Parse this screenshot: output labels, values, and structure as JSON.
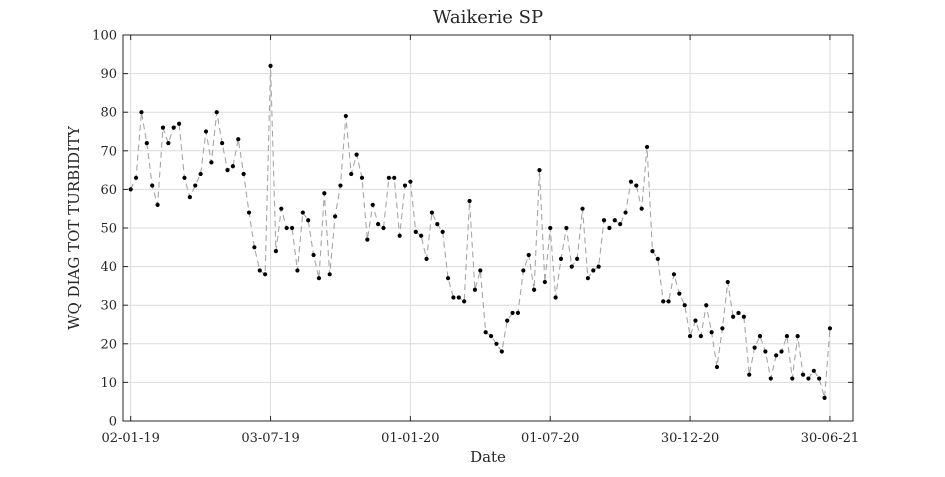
{
  "chart_data": {
    "type": "line",
    "title": "Waikerie SP",
    "xlabel": "Date",
    "ylabel": "WQ DIAG TOT TURBIDITY",
    "ylim": [
      0,
      100
    ],
    "yticks": [
      0,
      10,
      20,
      30,
      40,
      50,
      60,
      70,
      80,
      90,
      100
    ],
    "xlim": [
      "2018-12-23",
      "2021-07-30"
    ],
    "xticks": [
      {
        "date": "2019-01-02",
        "label": "02-01-19"
      },
      {
        "date": "2019-07-03",
        "label": "03-07-19"
      },
      {
        "date": "2020-01-01",
        "label": "01-01-20"
      },
      {
        "date": "2020-07-01",
        "label": "01-07-20"
      },
      {
        "date": "2020-12-30",
        "label": "30-12-20"
      },
      {
        "date": "2021-06-30",
        "label": "30-06-21"
      }
    ],
    "grid": true,
    "line_style": "dashed",
    "colors": {
      "line": "#a6a6a6",
      "marker": "#000000",
      "grid": "#dcdcdc",
      "axis": "#262626"
    },
    "series": [
      {
        "x": [
          "2019-01-02",
          "2019-01-09",
          "2019-01-16",
          "2019-01-23",
          "2019-01-30",
          "2019-02-06",
          "2019-02-13",
          "2019-02-20",
          "2019-02-27",
          "2019-03-06",
          "2019-03-13",
          "2019-03-20",
          "2019-03-27",
          "2019-04-03",
          "2019-04-10",
          "2019-04-17",
          "2019-04-24",
          "2019-05-01",
          "2019-05-08",
          "2019-05-15",
          "2019-05-22",
          "2019-05-29",
          "2019-06-05",
          "2019-06-12",
          "2019-06-19",
          "2019-06-26",
          "2019-07-03",
          "2019-07-10",
          "2019-07-17",
          "2019-07-24",
          "2019-07-31",
          "2019-08-07",
          "2019-08-14",
          "2019-08-21",
          "2019-08-28",
          "2019-09-04",
          "2019-09-11",
          "2019-09-18",
          "2019-09-25",
          "2019-10-02",
          "2019-10-09",
          "2019-10-16",
          "2019-10-23",
          "2019-10-30",
          "2019-11-06",
          "2019-11-13",
          "2019-11-20",
          "2019-11-27",
          "2019-12-04",
          "2019-12-11",
          "2019-12-18",
          "2019-12-25",
          "2020-01-01",
          "2020-01-08",
          "2020-01-15",
          "2020-01-22",
          "2020-01-29",
          "2020-02-05",
          "2020-02-12",
          "2020-02-19",
          "2020-02-26",
          "2020-03-04",
          "2020-03-11",
          "2020-03-18",
          "2020-03-25",
          "2020-04-01",
          "2020-04-08",
          "2020-04-15",
          "2020-04-22",
          "2020-04-29",
          "2020-05-06",
          "2020-05-13",
          "2020-05-20",
          "2020-05-27",
          "2020-06-03",
          "2020-06-10",
          "2020-06-17",
          "2020-06-24",
          "2020-07-01",
          "2020-07-08",
          "2020-07-15",
          "2020-07-22",
          "2020-07-29",
          "2020-08-05",
          "2020-08-12",
          "2020-08-19",
          "2020-08-26",
          "2020-09-02",
          "2020-09-09",
          "2020-09-16",
          "2020-09-23",
          "2020-09-30",
          "2020-10-07",
          "2020-10-14",
          "2020-10-21",
          "2020-10-28",
          "2020-11-04",
          "2020-11-11",
          "2020-11-18",
          "2020-11-25",
          "2020-12-02",
          "2020-12-09",
          "2020-12-16",
          "2020-12-23",
          "2020-12-30",
          "2021-01-06",
          "2021-01-13",
          "2021-01-20",
          "2021-01-27",
          "2021-02-03",
          "2021-02-10",
          "2021-02-17",
          "2021-02-24",
          "2021-03-03",
          "2021-03-10",
          "2021-03-17",
          "2021-03-24",
          "2021-03-31",
          "2021-04-07",
          "2021-04-14",
          "2021-04-21",
          "2021-04-28",
          "2021-05-05",
          "2021-05-12",
          "2021-05-19",
          "2021-05-26",
          "2021-06-02",
          "2021-06-09",
          "2021-06-16",
          "2021-06-23",
          "2021-06-30"
        ],
        "y": [
          60,
          63,
          80,
          72,
          61,
          56,
          76,
          72,
          76,
          77,
          63,
          58,
          61,
          64,
          75,
          67,
          80,
          72,
          65,
          66,
          73,
          64,
          54,
          45,
          39,
          38,
          92,
          44,
          55,
          50,
          50,
          39,
          54,
          52,
          43,
          37,
          59,
          38,
          53,
          61,
          79,
          64,
          69,
          63,
          47,
          56,
          51,
          50,
          63,
          63,
          48,
          61,
          62,
          49,
          48,
          42,
          54,
          51,
          49,
          37,
          32,
          32,
          31,
          57,
          34,
          39,
          23,
          22,
          20,
          18,
          26,
          28,
          28,
          39,
          43,
          34,
          65,
          36,
          50,
          32,
          42,
          50,
          40,
          42,
          55,
          37,
          39,
          40,
          52,
          50,
          52,
          51,
          54,
          62,
          61,
          55,
          71,
          44,
          42,
          31,
          31,
          38,
          33,
          30,
          22,
          26,
          22,
          30,
          23,
          14,
          24,
          36,
          27,
          28,
          27,
          12,
          19,
          22,
          18,
          11,
          17,
          18,
          22,
          11,
          22,
          12,
          11,
          13,
          11,
          6,
          24
        ]
      }
    ]
  }
}
